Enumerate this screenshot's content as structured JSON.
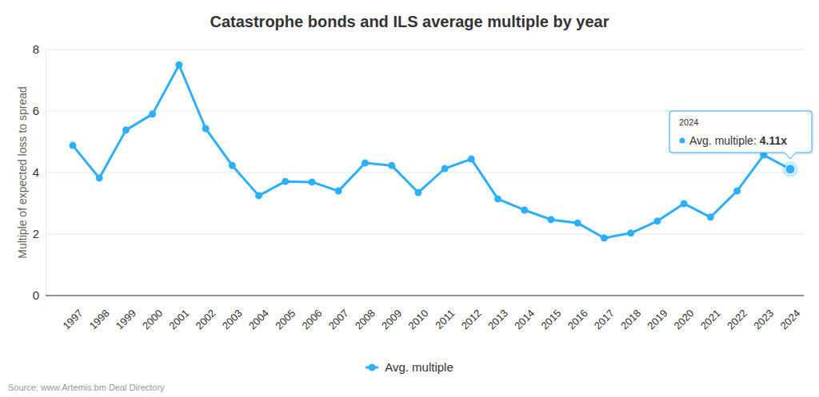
{
  "chart_data": {
    "type": "line",
    "title": "Catastrophe bonds and ILS average multiple by year",
    "y_label": "Multiple of expected loss to spread",
    "source": "Source: www.Artemis.bm Deal Directory",
    "categories": [
      "1997",
      "1998",
      "1999",
      "2000",
      "2001",
      "2002",
      "2003",
      "2004",
      "2005",
      "2006",
      "2007",
      "2008",
      "2009",
      "2010",
      "2011",
      "2012",
      "2013",
      "2014",
      "2015",
      "2016",
      "2017",
      "2018",
      "2019",
      "2020",
      "2021",
      "2022",
      "2023",
      "2024"
    ],
    "series": [
      {
        "name": "Avg. multiple",
        "color": "#2caffe",
        "marker": "circle",
        "values": [
          4.88,
          3.82,
          5.38,
          5.9,
          7.5,
          5.43,
          4.23,
          3.25,
          3.71,
          3.69,
          3.4,
          4.31,
          4.23,
          3.35,
          4.13,
          4.44,
          3.14,
          2.78,
          2.47,
          2.36,
          1.87,
          2.03,
          2.42,
          2.99,
          2.55,
          3.4,
          4.57,
          4.11
        ]
      }
    ],
    "ylim": [
      0,
      8
    ],
    "yticks": [
      0,
      2,
      4,
      6,
      8
    ],
    "grid": true,
    "legend": "bottom",
    "annotations": [
      {
        "title": "2024",
        "label": "Avg. multiple:",
        "value_label": "4.11x"
      }
    ]
  }
}
